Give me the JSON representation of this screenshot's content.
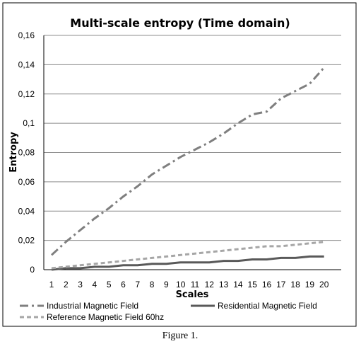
{
  "chart_data": {
    "type": "line",
    "title": "Multi-scale entropy (Time domain)",
    "xlabel": "Scales",
    "ylabel": "Entropy",
    "ylim": [
      0,
      0.16
    ],
    "y_ticks": [
      "0",
      "0,02",
      "0,04",
      "0,06",
      "0,08",
      "0,1",
      "0,12",
      "0,14",
      "0,16"
    ],
    "categories": [
      "1",
      "2",
      "3",
      "4",
      "5",
      "6",
      "7",
      "8",
      "9",
      "10",
      "11",
      "12",
      "13",
      "14",
      "15",
      "16",
      "17",
      "18",
      "19",
      "20"
    ],
    "grid": "horizontal",
    "legend_position": "bottom",
    "series": [
      {
        "name": "Industrial Magnetic Field",
        "color": "#7f7f7f",
        "dash": "dash-dot",
        "values": [
          0.01,
          0.019,
          0.027,
          0.035,
          0.042,
          0.05,
          0.057,
          0.065,
          0.071,
          0.077,
          0.082,
          0.087,
          0.093,
          0.1,
          0.106,
          0.108,
          0.117,
          0.122,
          0.127,
          0.138
        ]
      },
      {
        "name": "Residential Magnetic Field",
        "color": "#595959",
        "dash": "solid",
        "values": [
          0.0,
          0.001,
          0.001,
          0.002,
          0.002,
          0.003,
          0.003,
          0.004,
          0.004,
          0.005,
          0.005,
          0.005,
          0.006,
          0.006,
          0.007,
          0.007,
          0.008,
          0.008,
          0.009,
          0.009
        ]
      },
      {
        "name": "Reference Magnetic Field 60hz",
        "color": "#a6a6a6",
        "dash": "dashed",
        "values": [
          0.001,
          0.002,
          0.003,
          0.004,
          0.005,
          0.006,
          0.007,
          0.008,
          0.009,
          0.01,
          0.011,
          0.012,
          0.013,
          0.014,
          0.015,
          0.016,
          0.016,
          0.017,
          0.018,
          0.019
        ]
      }
    ]
  },
  "caption": "Figure 1."
}
